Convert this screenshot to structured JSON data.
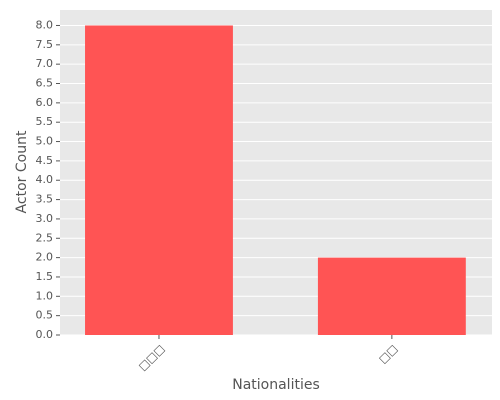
{
  "chart_data": {
    "type": "bar",
    "categories": [
      "□□□",
      "□□"
    ],
    "values": [
      8,
      2
    ],
    "color": "#ff5454",
    "xlabel": "Nationalities",
    "ylabel": "Actor Count",
    "ylim": [
      0,
      8.4
    ],
    "yticks": [
      {
        "value": 0,
        "label": "0.0"
      },
      0.5,
      {
        "value": 1,
        "label": "1.0"
      },
      1.5,
      {
        "value": 2,
        "label": "2.0"
      },
      2.5,
      {
        "value": 3,
        "label": "3.0"
      },
      3.5,
      {
        "value": 4,
        "label": "4.0"
      },
      4.5,
      {
        "value": 5,
        "label": "5.0"
      },
      5.5,
      {
        "value": 6,
        "label": "6.0"
      },
      6.5,
      {
        "value": 7,
        "label": "7.0"
      },
      7.5,
      {
        "value": 8,
        "label": "8.0"
      }
    ],
    "grid": true
  }
}
